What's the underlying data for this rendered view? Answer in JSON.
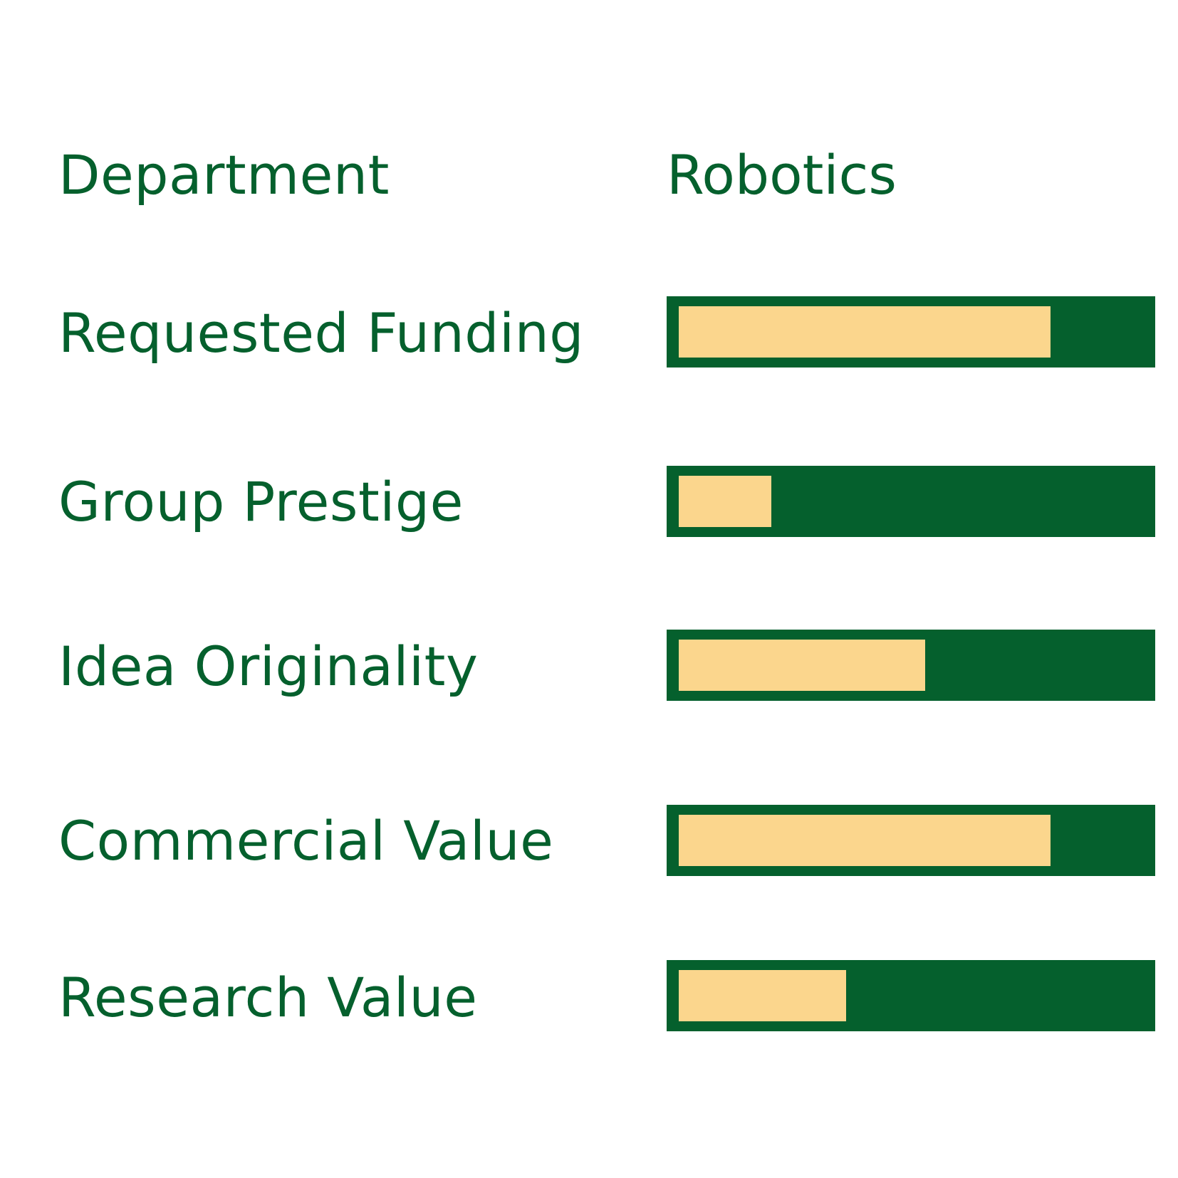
{
  "chart_data": {
    "type": "bar",
    "orientation": "horizontal",
    "header": {
      "label": "Department",
      "value": "Robotics"
    },
    "categories": [
      "Requested Funding",
      "Group Prestige",
      "Idea Originality",
      "Commercial Value",
      "Research Value"
    ],
    "values": [
      0.8,
      0.2,
      0.53,
      0.8,
      0.36
    ],
    "xlim": [
      0,
      1
    ],
    "grid": false,
    "colors": {
      "text": "#05602d",
      "track": "#05602d",
      "fill": "#fbd68d"
    }
  }
}
